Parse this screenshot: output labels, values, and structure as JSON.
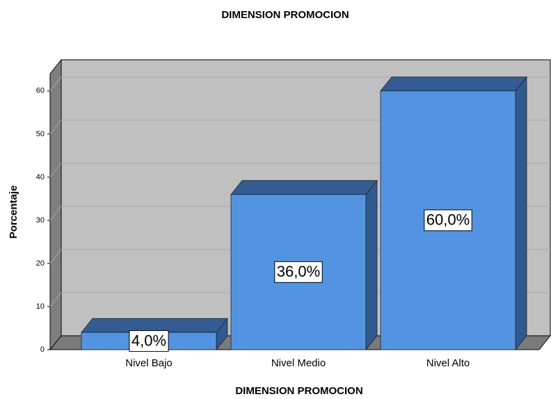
{
  "chart_data": {
    "type": "bar3d",
    "title": "DIMENSION PROMOCION",
    "x_label": "DIMENSION PROMOCION",
    "y_label": "Porcentaje",
    "categories": [
      "Nivel Bajo",
      "Nivel Medio",
      "Nivel Alto"
    ],
    "values": [
      4,
      36,
      60
    ],
    "value_labels": [
      "4,0%",
      "36,0%",
      "60,0%"
    ],
    "color": "#5294e2",
    "ylim": [
      0,
      64
    ],
    "yticks": [
      0,
      10,
      20,
      30,
      40,
      50,
      60
    ],
    "grid": true
  }
}
